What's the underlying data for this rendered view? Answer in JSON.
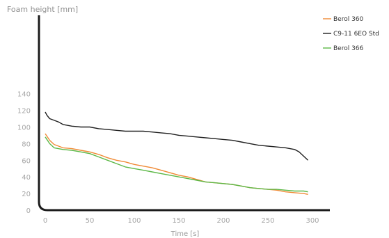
{
  "chart_data": {
    "type": "line",
    "title": "",
    "xlabel": "Time [s]",
    "ylabel": "Foam height [mm]",
    "xlim": [
      -5,
      320
    ],
    "ylim": [
      0,
      145
    ],
    "xticks": [
      0,
      50,
      100,
      150,
      200,
      250,
      300
    ],
    "yticks": [
      0,
      20,
      40,
      60,
      80,
      100,
      120,
      140
    ],
    "grid": false,
    "legend_position": "top-right",
    "series": [
      {
        "name": "Berol 360",
        "color": "#f08a35",
        "x": [
          0,
          5,
          10,
          20,
          30,
          40,
          50,
          60,
          70,
          80,
          90,
          100,
          110,
          120,
          130,
          140,
          150,
          160,
          170,
          180,
          190,
          200,
          210,
          220,
          230,
          240,
          250,
          260,
          270,
          280,
          290,
          295
        ],
        "y": [
          92,
          84,
          79,
          75,
          74,
          72,
          70,
          67,
          63,
          60,
          58,
          55,
          53,
          51,
          48,
          45,
          42,
          40,
          37,
          34,
          33,
          32,
          31,
          29,
          27,
          26,
          25,
          24,
          22,
          21,
          20,
          19
        ]
      },
      {
        "name": "C9-11 6EO Std",
        "color": "#1f1f1f",
        "x": [
          0,
          2,
          5,
          10,
          15,
          20,
          30,
          40,
          50,
          60,
          70,
          80,
          90,
          100,
          110,
          120,
          130,
          140,
          150,
          160,
          170,
          180,
          190,
          200,
          210,
          220,
          230,
          240,
          250,
          260,
          270,
          280,
          285,
          290,
          295
        ],
        "y": [
          118,
          114,
          110,
          108,
          106,
          103,
          101,
          100,
          100,
          98,
          97,
          96,
          95,
          95,
          95,
          94,
          93,
          92,
          90,
          89,
          88,
          87,
          86,
          85,
          84,
          82,
          80,
          78,
          77,
          76,
          75,
          73,
          70,
          65,
          60
        ]
      },
      {
        "name": "Berol 366",
        "color": "#5cb847",
        "x": [
          0,
          5,
          10,
          20,
          30,
          40,
          50,
          60,
          70,
          80,
          90,
          100,
          110,
          120,
          130,
          140,
          150,
          160,
          170,
          180,
          190,
          200,
          210,
          220,
          230,
          240,
          250,
          260,
          270,
          280,
          290,
          295
        ],
        "y": [
          88,
          80,
          75,
          73,
          72,
          70,
          68,
          64,
          60,
          56,
          52,
          50,
          48,
          46,
          44,
          42,
          40,
          38,
          36,
          34,
          33,
          32,
          31,
          29,
          27,
          26,
          25,
          25,
          24,
          23,
          23,
          22
        ]
      }
    ]
  }
}
